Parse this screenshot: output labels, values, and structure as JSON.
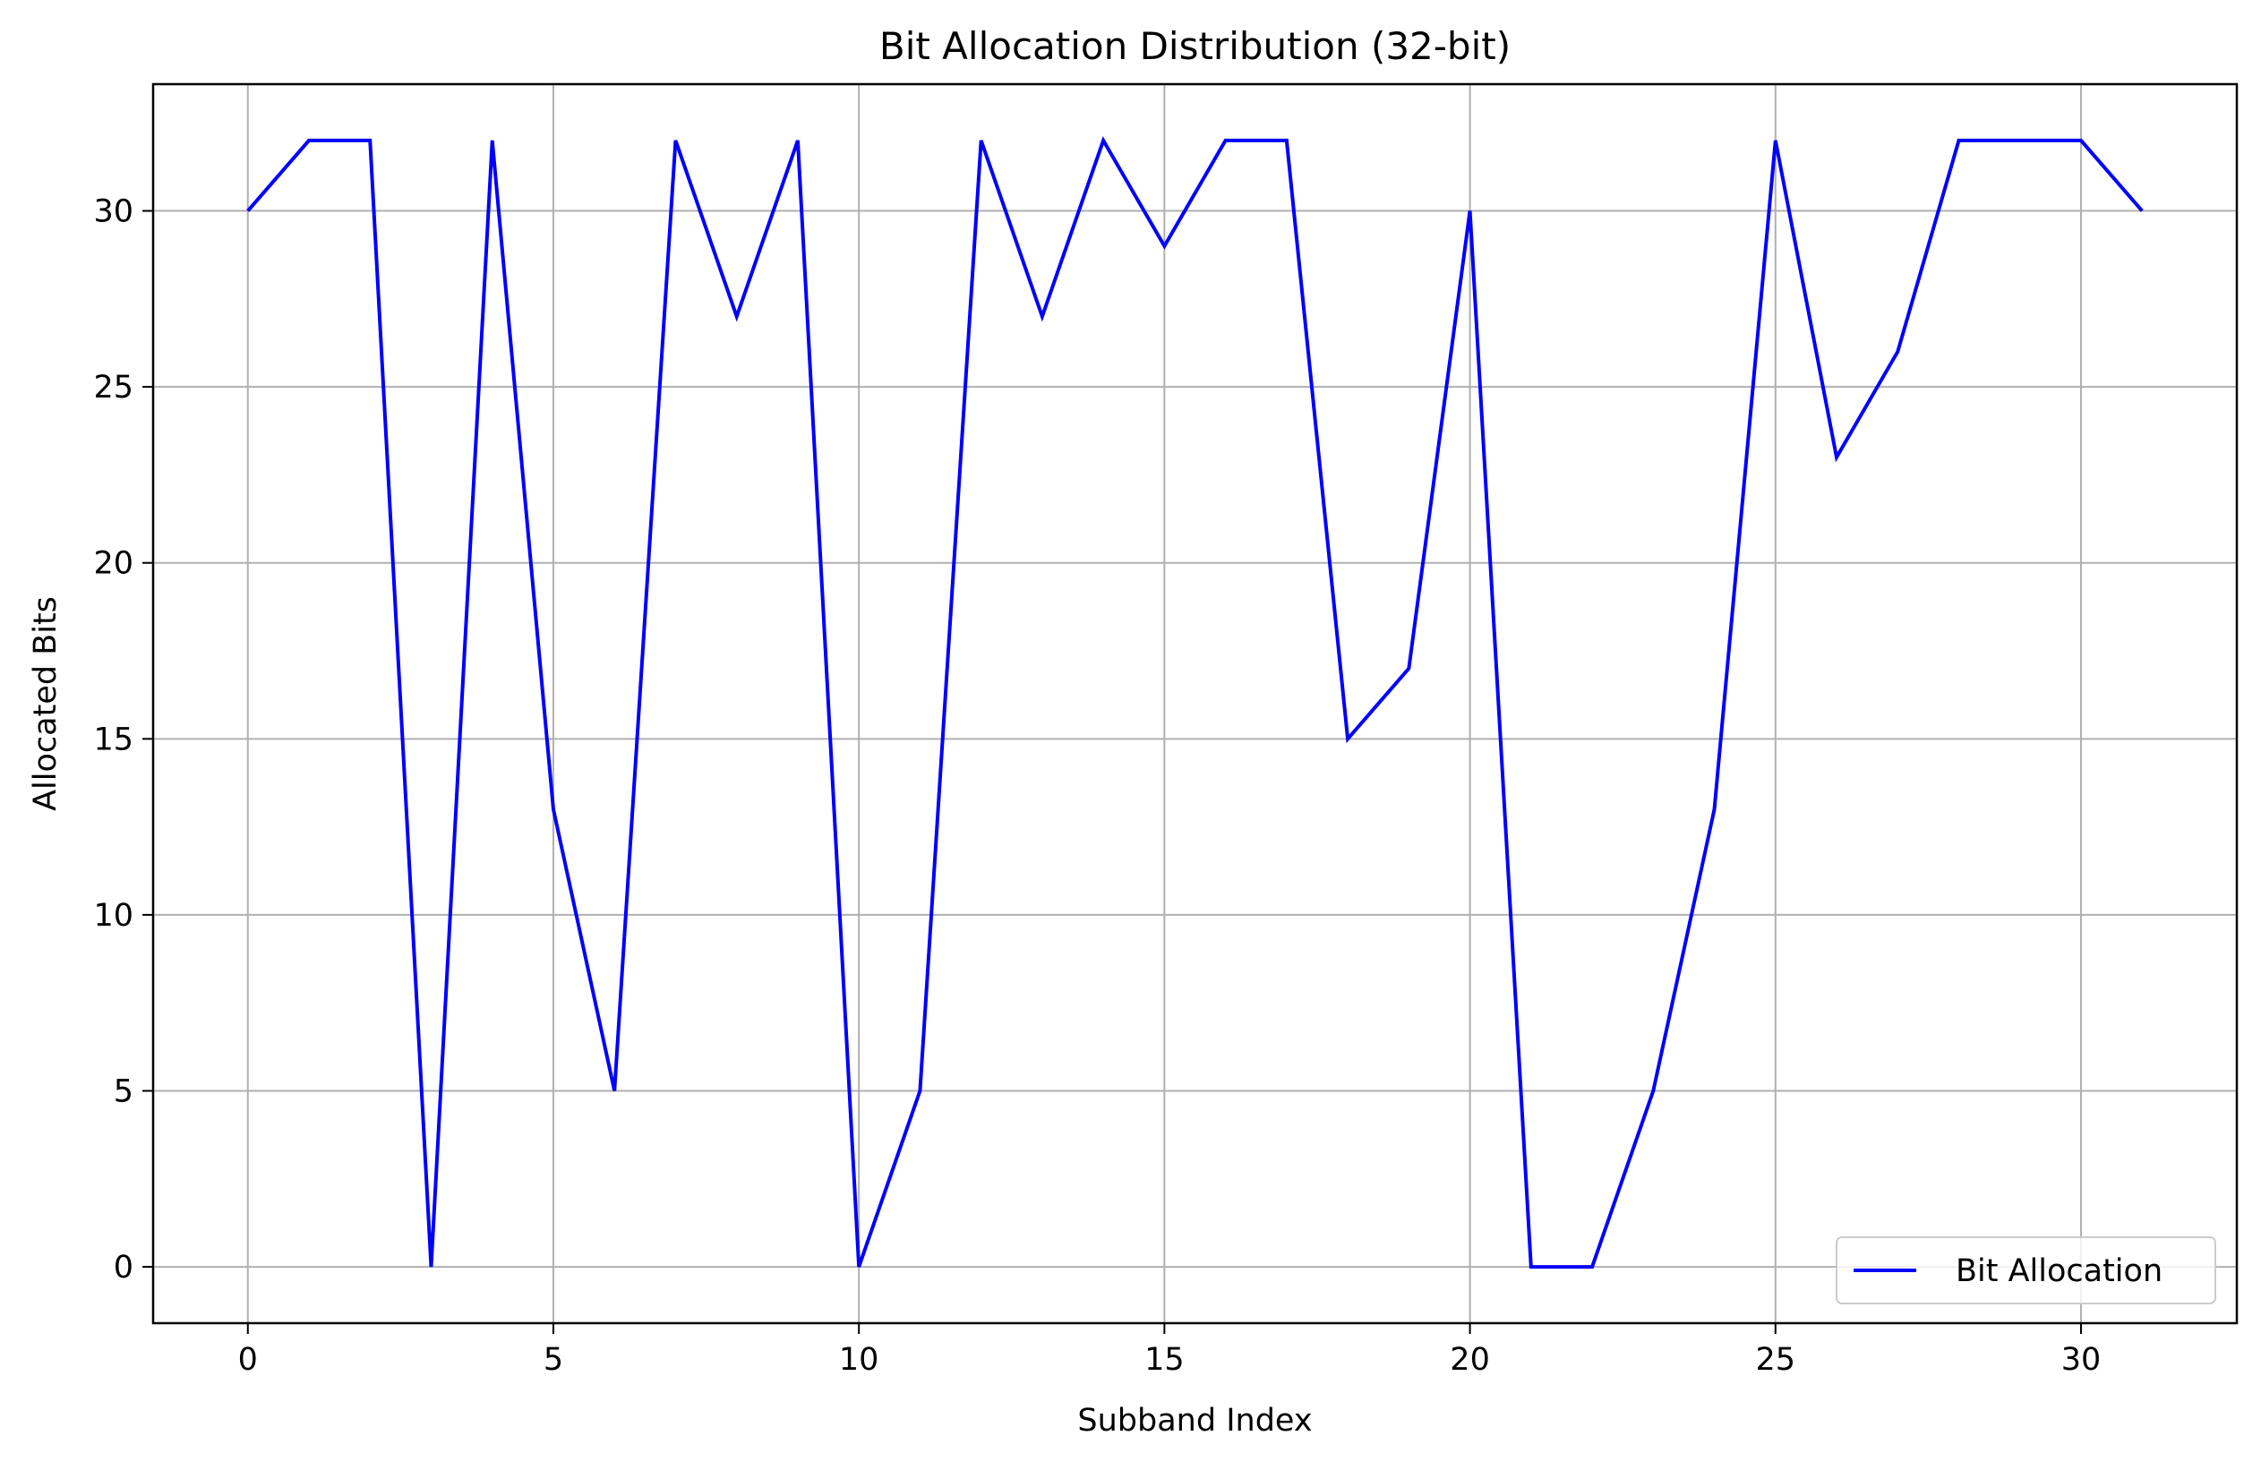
{
  "chart_data": {
    "type": "line",
    "title": "Bit Allocation Distribution (32-bit)",
    "xlabel": "Subband Index",
    "ylabel": "Allocated Bits",
    "xlim": [
      -1.55,
      32.55
    ],
    "ylim": [
      -1.6,
      33.6
    ],
    "xticks": [
      0,
      5,
      10,
      15,
      20,
      25,
      30
    ],
    "yticks": [
      0,
      5,
      10,
      15,
      20,
      25,
      30
    ],
    "grid": true,
    "legend_position": "bottom-right",
    "series": [
      {
        "name": "Bit Allocation",
        "color": "#0000ff",
        "x": [
          0,
          1,
          2,
          3,
          4,
          5,
          6,
          7,
          8,
          9,
          10,
          11,
          12,
          13,
          14,
          15,
          16,
          17,
          18,
          19,
          20,
          21,
          22,
          23,
          24,
          25,
          26,
          27,
          28,
          29,
          30,
          31
        ],
        "y": [
          30,
          32,
          32,
          0,
          32,
          13,
          5,
          32,
          27,
          32,
          0,
          5,
          32,
          27,
          32,
          29,
          32,
          32,
          15,
          17,
          30,
          0,
          0,
          5,
          13,
          32,
          23,
          26,
          32,
          32,
          32,
          30
        ]
      }
    ]
  }
}
